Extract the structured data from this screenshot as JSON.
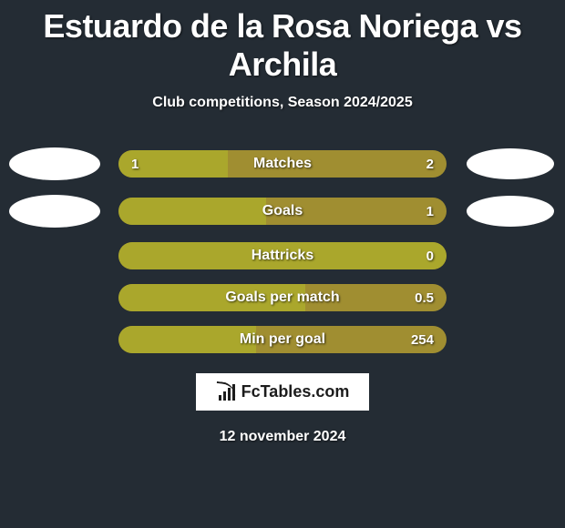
{
  "title": "Estuardo de la Rosa Noriega vs Archila",
  "subtitle": "Club competitions, Season 2024/2025",
  "date": "12 november 2024",
  "branding": "FcTables.com",
  "colors": {
    "background": "#242c34",
    "bar_left_fill": "#aaa72c",
    "bar_right_fill": "#a08e31",
    "text": "#ffffff",
    "brand_bg": "#ffffff",
    "brand_text": "#1c1c1c"
  },
  "typography": {
    "title_fontsize": 36,
    "title_weight": 900,
    "subtitle_fontsize": 16,
    "label_fontsize": 16,
    "value_fontsize": 15
  },
  "stats": [
    {
      "label": "Matches",
      "left_value": "1",
      "right_value": "2",
      "left_pct": 33.3,
      "show_avatars": true
    },
    {
      "label": "Goals",
      "left_value": "",
      "right_value": "1",
      "left_pct": 45,
      "show_avatars": true
    },
    {
      "label": "Hattricks",
      "left_value": "",
      "right_value": "0",
      "left_pct": 100,
      "show_avatars": false
    },
    {
      "label": "Goals per match",
      "left_value": "",
      "right_value": "0.5",
      "left_pct": 57,
      "show_avatars": false
    },
    {
      "label": "Min per goal",
      "left_value": "",
      "right_value": "254",
      "left_pct": 42,
      "show_avatars": false
    }
  ]
}
